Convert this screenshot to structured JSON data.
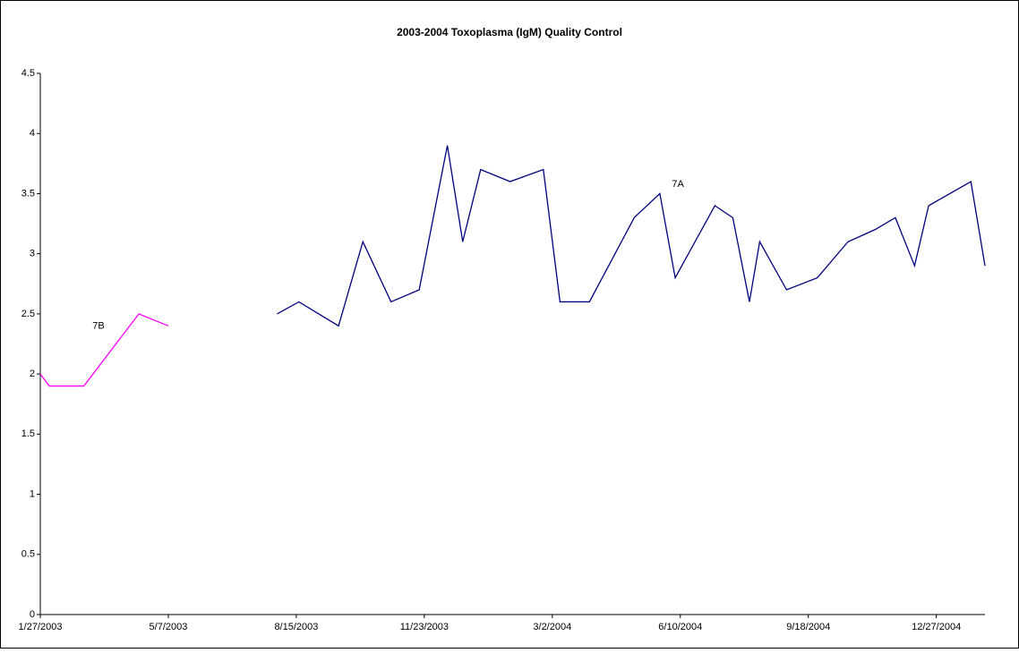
{
  "chart_data": {
    "type": "line",
    "title": "2003-2004 Toxoplasma (IgM) Quality Control",
    "xlim": [
      "1/27/2003",
      "2/3/2005"
    ],
    "xticks": [
      "1/27/2003",
      "5/7/2003",
      "8/15/2003",
      "11/23/2003",
      "3/2/2004",
      "6/10/2004",
      "9/18/2004",
      "12/27/2004"
    ],
    "ylim": [
      0,
      4.5
    ],
    "yticks": [
      0,
      0.5,
      1,
      1.5,
      2,
      2.5,
      3,
      3.5,
      4,
      4.5
    ],
    "grid": false,
    "series": [
      {
        "name": "7B",
        "color": "#ff00ff",
        "x": [
          "1/27/2003",
          "2/3/2003",
          "3/2/2003",
          "4/14/2003",
          "5/7/2003"
        ],
        "values": [
          2.0,
          1.9,
          1.9,
          2.5,
          2.4
        ]
      },
      {
        "name": "7A",
        "color": "#000080",
        "x": [
          "7/31/2003",
          "8/17/2003",
          "9/17/2003",
          "10/6/2003",
          "10/28/2003",
          "11/19/2003",
          "12/11/2003",
          "12/23/2003",
          "1/6/2004",
          "1/29/2004",
          "2/24/2004",
          "3/8/2004",
          "3/31/2004",
          "5/5/2004",
          "5/25/2004",
          "6/6/2004",
          "7/7/2004",
          "7/21/2004",
          "8/3/2004",
          "8/11/2004",
          "9/1/2004",
          "9/25/2004",
          "10/19/2004",
          "11/9/2004",
          "11/25/2004",
          "12/10/2004",
          "12/21/2004",
          "1/23/2005",
          "2/3/2005"
        ],
        "values": [
          2.5,
          2.6,
          2.4,
          3.1,
          2.6,
          2.7,
          3.9,
          3.1,
          3.7,
          3.6,
          3.7,
          2.6,
          2.6,
          3.3,
          3.5,
          2.8,
          3.4,
          3.3,
          2.6,
          3.1,
          2.7,
          2.8,
          3.1,
          3.2,
          3.3,
          2.9,
          3.4,
          3.6,
          2.9
        ]
      }
    ]
  }
}
